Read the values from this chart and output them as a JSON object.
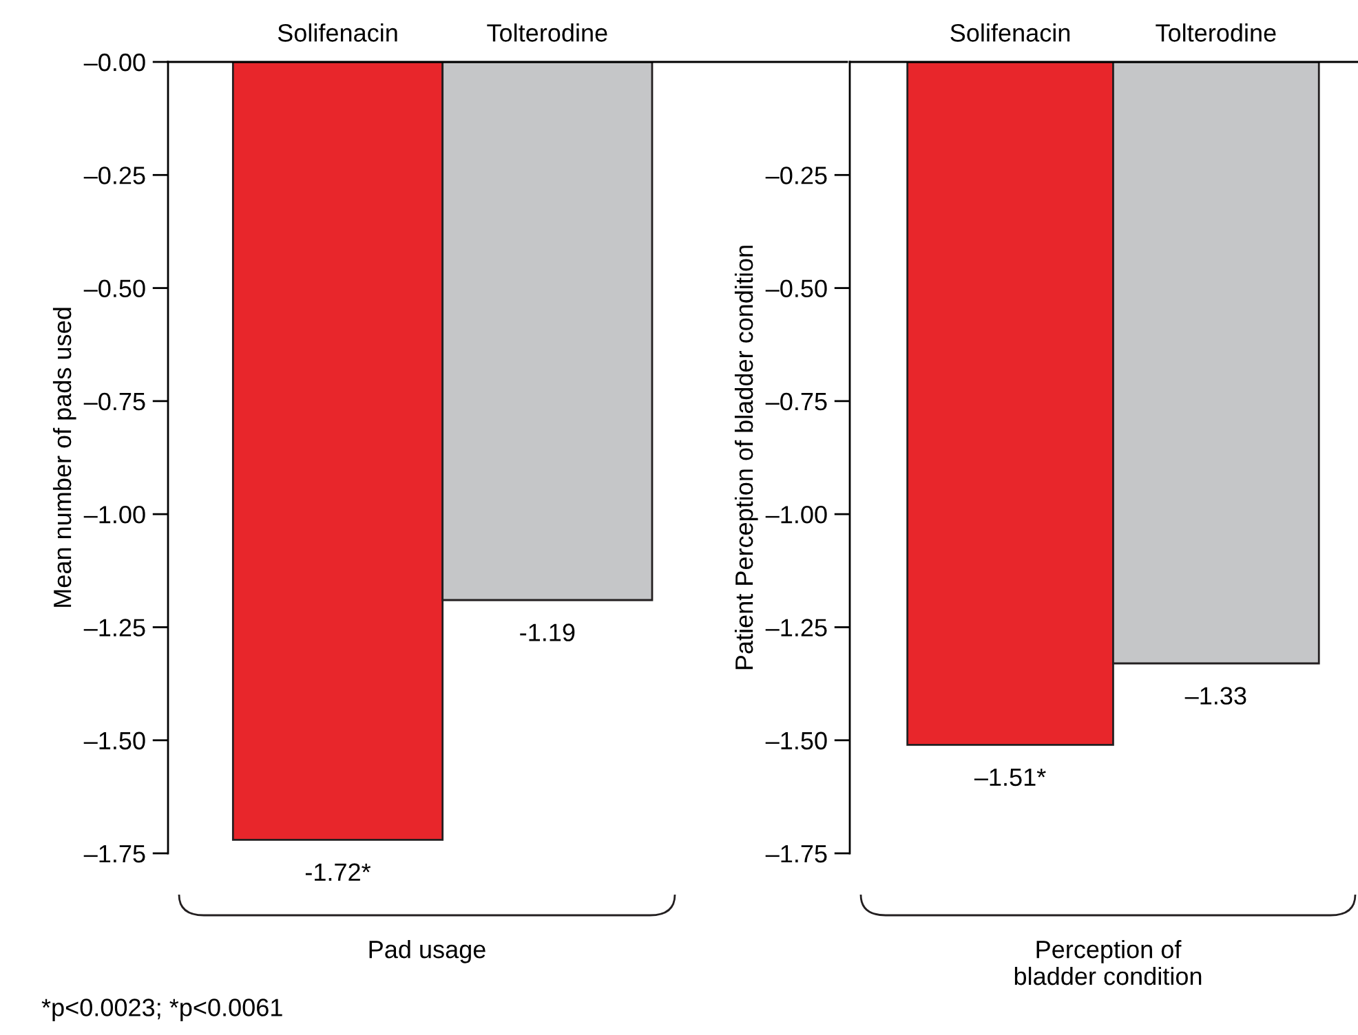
{
  "chart_data": [
    {
      "type": "bar",
      "categories": [
        "Solifenacin",
        "Tolterodine"
      ],
      "values": [
        -1.72,
        -1.19
      ],
      "colors": [
        "#e8262b",
        "#c5c6c8"
      ],
      "value_labels": [
        "-1.72*",
        "-1.19"
      ],
      "ylabel": "Mean number of pads used",
      "xlabel": "Pad usage",
      "ylim": [
        -1.75,
        0
      ],
      "yticks": [
        {
          "value": 0,
          "label": "–0.00"
        },
        {
          "value": -0.25,
          "label": "–0.25"
        },
        {
          "value": -0.5,
          "label": "–0.50"
        },
        {
          "value": -0.75,
          "label": "–0.75"
        },
        {
          "value": -1.0,
          "label": "–1.00"
        },
        {
          "value": -1.25,
          "label": "–1.25"
        },
        {
          "value": -1.5,
          "label": "–1.50"
        },
        {
          "value": -1.75,
          "label": "–1.75"
        }
      ],
      "annotations": [
        "*p<0.0023; *p<0.0061"
      ]
    },
    {
      "type": "bar",
      "categories": [
        "Solifenacin",
        "Tolterodine"
      ],
      "values": [
        -1.51,
        -1.33
      ],
      "colors": [
        "#e8262b",
        "#c5c6c8"
      ],
      "value_labels": [
        "–1.51*",
        "–1.33"
      ],
      "ylabel": "Patient Perception of bladder condition",
      "xlabel": "Perception of\nbladder condition",
      "ylim": [
        -1.75,
        0
      ],
      "yticks": [
        {
          "value": -0.25,
          "label": "–0.25"
        },
        {
          "value": -0.5,
          "label": "–0.50"
        },
        {
          "value": -0.75,
          "label": "–0.75"
        },
        {
          "value": -1.0,
          "label": "–1.00"
        },
        {
          "value": -1.25,
          "label": "–1.25"
        },
        {
          "value": -1.5,
          "label": "–1.50"
        },
        {
          "value": -1.75,
          "label": "–1.75"
        }
      ]
    }
  ]
}
